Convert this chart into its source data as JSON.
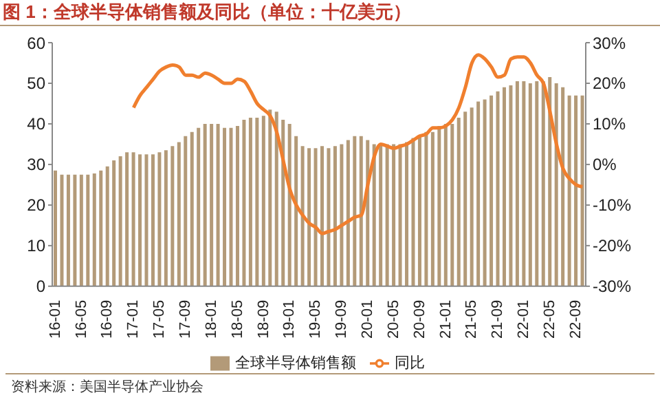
{
  "chart_data": {
    "type": "bar",
    "title": "图 1：全球半导体销售额及同比（单位：十亿美元）",
    "categories": [
      "16-01",
      null,
      null,
      null,
      "16-05",
      null,
      null,
      null,
      "16-09",
      null,
      null,
      null,
      "17-01",
      null,
      null,
      null,
      "17-05",
      null,
      null,
      null,
      "17-09",
      null,
      null,
      null,
      "18-01",
      null,
      null,
      null,
      "18-05",
      null,
      null,
      null,
      "18-09",
      null,
      null,
      null,
      "19-01",
      null,
      null,
      null,
      "19-05",
      null,
      null,
      null,
      "19-09",
      null,
      null,
      null,
      "20-01",
      null,
      null,
      null,
      "20-05",
      null,
      null,
      null,
      "20-09",
      null,
      null,
      null,
      "21-01",
      null,
      null,
      null,
      "21-05",
      null,
      null,
      null,
      "21-09",
      null,
      null,
      null,
      "22-01",
      null,
      null,
      null,
      "22-05",
      null,
      null,
      null,
      "22-09",
      null
    ],
    "series": [
      {
        "name": "全球半导体销售额",
        "color": "#b39a78",
        "values": [
          28.5,
          27.5,
          27.5,
          27.5,
          27.5,
          27.5,
          27.8,
          28.5,
          29.5,
          31,
          32,
          33,
          33,
          32.5,
          32.5,
          32.5,
          33,
          33.5,
          34.5,
          35.5,
          37,
          38,
          39,
          40,
          40,
          40,
          39,
          39,
          39.5,
          41,
          41.5,
          41.5,
          42,
          43.5,
          43,
          41,
          40,
          37,
          34.5,
          34,
          34,
          34.5,
          34,
          34.5,
          35,
          36,
          37,
          37,
          36,
          35,
          35,
          35,
          35,
          35,
          35.5,
          36.5,
          37,
          38,
          38,
          39.5,
          40,
          40,
          41.5,
          43,
          44,
          45.5,
          46,
          47,
          48,
          49,
          49.5,
          50.5,
          50.5,
          50,
          50.5,
          50.5,
          51.5,
          50,
          49,
          47,
          47,
          47
        ]
      },
      {
        "name": "同比",
        "type": "line",
        "axis": "y2",
        "color": "#f07f2e",
        "values": [
          null,
          null,
          null,
          null,
          null,
          null,
          null,
          null,
          null,
          null,
          null,
          null,
          14,
          17,
          19,
          21,
          23,
          24,
          24.5,
          24,
          22,
          22,
          21.5,
          22.5,
          22,
          21,
          20,
          20,
          21,
          20.5,
          18,
          15,
          13.5,
          12,
          8,
          1,
          -6,
          -10,
          -12.5,
          -14.5,
          -15.5,
          -17,
          -16.5,
          -16,
          -15,
          -14,
          -13,
          -12.5,
          -5,
          2,
          5,
          4.5,
          4,
          4.5,
          5,
          6,
          7,
          7.5,
          9,
          9,
          9.5,
          11,
          14,
          19,
          25,
          27,
          26,
          24,
          21.5,
          22,
          26,
          26.5,
          26.5,
          25,
          22,
          20,
          13,
          5,
          -1,
          -3.5,
          -5,
          -5.5
        ]
      }
    ],
    "ylim": [
      0,
      60
    ],
    "yticks": [
      0,
      10,
      20,
      30,
      40,
      50,
      60
    ],
    "y2lim": [
      -30,
      30
    ],
    "y2ticks": [
      {
        "value": -30,
        "label": "-30%"
      },
      {
        "value": -20,
        "label": "-20%"
      },
      {
        "value": -10,
        "label": "-10%"
      },
      {
        "value": 0,
        "label": "0%"
      },
      {
        "value": 10,
        "label": "10%"
      },
      {
        "value": 20,
        "label": "20%"
      },
      {
        "value": 30,
        "label": "30%"
      }
    ],
    "legend": "bottom",
    "grid": false,
    "annotations": [
      "资料来源：美国半导体产业协会"
    ]
  }
}
